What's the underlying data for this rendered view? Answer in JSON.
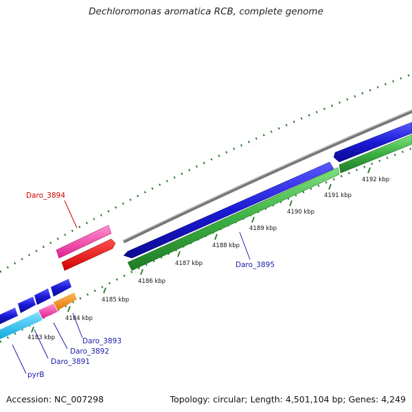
{
  "title": "Dechloromonas aromatica RCB, complete genome",
  "footer": {
    "accession": "Accession: NC_007298",
    "summary": "Topology: circular; Length: 4,501,104 bp; Genes: 4,249"
  },
  "colors": {
    "backbone": "#888888",
    "tick": "#2e7d32",
    "forward_gene": "#1a1ad6",
    "reverse_gene": "#3cb043",
    "highlight_label": "#cc0000",
    "gene_label": "#1a1aa8"
  },
  "kbp_labels": [
    "4183 kbp",
    "4184 kbp",
    "4185 kbp",
    "4186 kbp",
    "4187 kbp",
    "4188 kbp",
    "4189 kbp",
    "4190 kbp",
    "4191 kbp",
    "4192 kbp"
  ],
  "gene_labels": {
    "daro_3894": "Daro_3894",
    "daro_3895": "Daro_3895",
    "daro_3893": "Daro_3893",
    "daro_3892": "Daro_3892",
    "daro_3891": "Daro_3891",
    "pyrb": "pyrB"
  }
}
